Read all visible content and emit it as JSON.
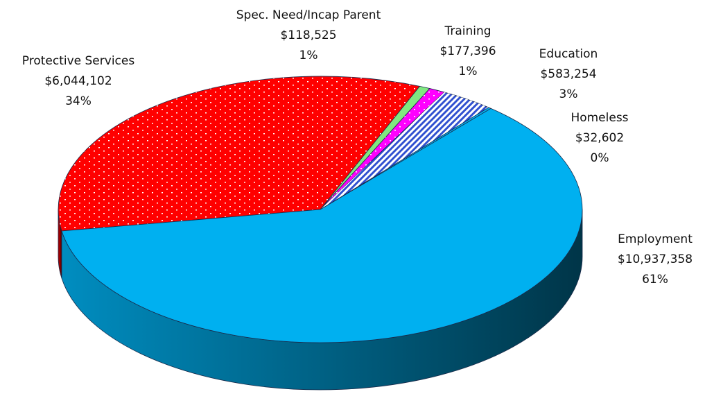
{
  "chart_data": {
    "type": "pie",
    "categories": [
      "Protective Services",
      "Spec. Need/Incap Parent",
      "Training",
      "Education",
      "Homeless",
      "Employment"
    ],
    "values": [
      6044102,
      118525,
      177396,
      583254,
      32602,
      10937358
    ],
    "value_labels": [
      "$6,044,102",
      "$118,525",
      "$177,396",
      "$583,254",
      "$32,602",
      "$10,937,358"
    ],
    "percent_labels": [
      "34%",
      "1%",
      "1%",
      "3%",
      "0%",
      "61%"
    ],
    "colors": [
      "#ff0000",
      "#80e880",
      "#ff00ff",
      "#3050d0",
      "#00b0f0",
      "#00b0f0"
    ],
    "patterns": [
      "dots",
      null,
      "dots",
      "hatch",
      null,
      null
    ]
  }
}
